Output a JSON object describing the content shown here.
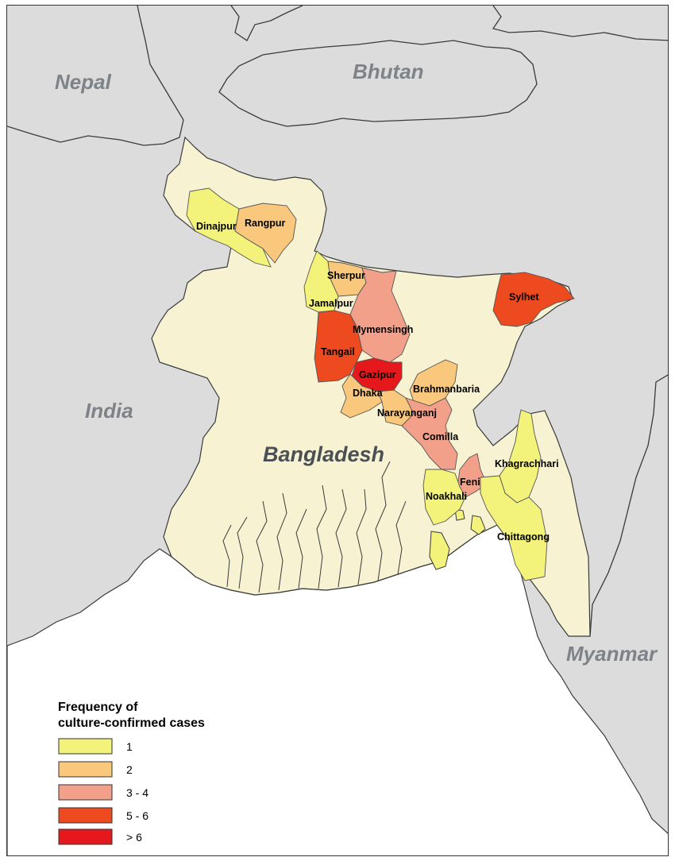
{
  "countries": {
    "nepal": "Nepal",
    "bhutan": "Bhutan",
    "india": "India",
    "bangladesh": "Bangladesh",
    "myanmar": "Myanmar"
  },
  "districts": [
    {
      "name": "Dinajpur",
      "class": "1",
      "color": "#f3f27a"
    },
    {
      "name": "Rangpur",
      "class": "2",
      "color": "#f9c87c"
    },
    {
      "name": "Sherpur",
      "class": "2",
      "color": "#f9c87c"
    },
    {
      "name": "Jamalpur",
      "class": "1",
      "color": "#f3f27a"
    },
    {
      "name": "Mymensingh",
      "class": "3 - 4",
      "color": "#f3a08a"
    },
    {
      "name": "Sylhet",
      "class": "5 - 6",
      "color": "#ee4a1f"
    },
    {
      "name": "Tangail",
      "class": "5 - 6",
      "color": "#ee4a1f"
    },
    {
      "name": "Gazipur",
      "class": "> 6",
      "color": "#e5191c"
    },
    {
      "name": "Dhaka",
      "class": "2",
      "color": "#f9c87c"
    },
    {
      "name": "Brahmanbaria",
      "class": "2",
      "color": "#f9c87c"
    },
    {
      "name": "Narayanganj",
      "class": "2",
      "color": "#f9c87c"
    },
    {
      "name": "Comilla",
      "class": "3 - 4",
      "color": "#f3a08a"
    },
    {
      "name": "Khagrachhari",
      "class": "1",
      "color": "#f3f27a"
    },
    {
      "name": "Feni",
      "class": "3 - 4",
      "color": "#f3a08a"
    },
    {
      "name": "Noakhali",
      "class": "1",
      "color": "#f3f27a"
    },
    {
      "name": "Chittagong",
      "class": "1",
      "color": "#f3f27a"
    }
  ],
  "legend": {
    "title_line1": "Frequency of",
    "title_line2": "culture-confirmed cases",
    "items": [
      {
        "label": "1",
        "color": "#f3f27a"
      },
      {
        "label": "2",
        "color": "#f9c87c"
      },
      {
        "label": "3 - 4",
        "color": "#f3a08a"
      },
      {
        "label": "5 - 6",
        "color": "#ee4a1f"
      },
      {
        "label": "> 6",
        "color": "#e5191c"
      }
    ]
  },
  "colors": {
    "land_other": "#dcdcdc",
    "bangladesh_base": "#f7f2d2",
    "sea": "#ffffff"
  }
}
